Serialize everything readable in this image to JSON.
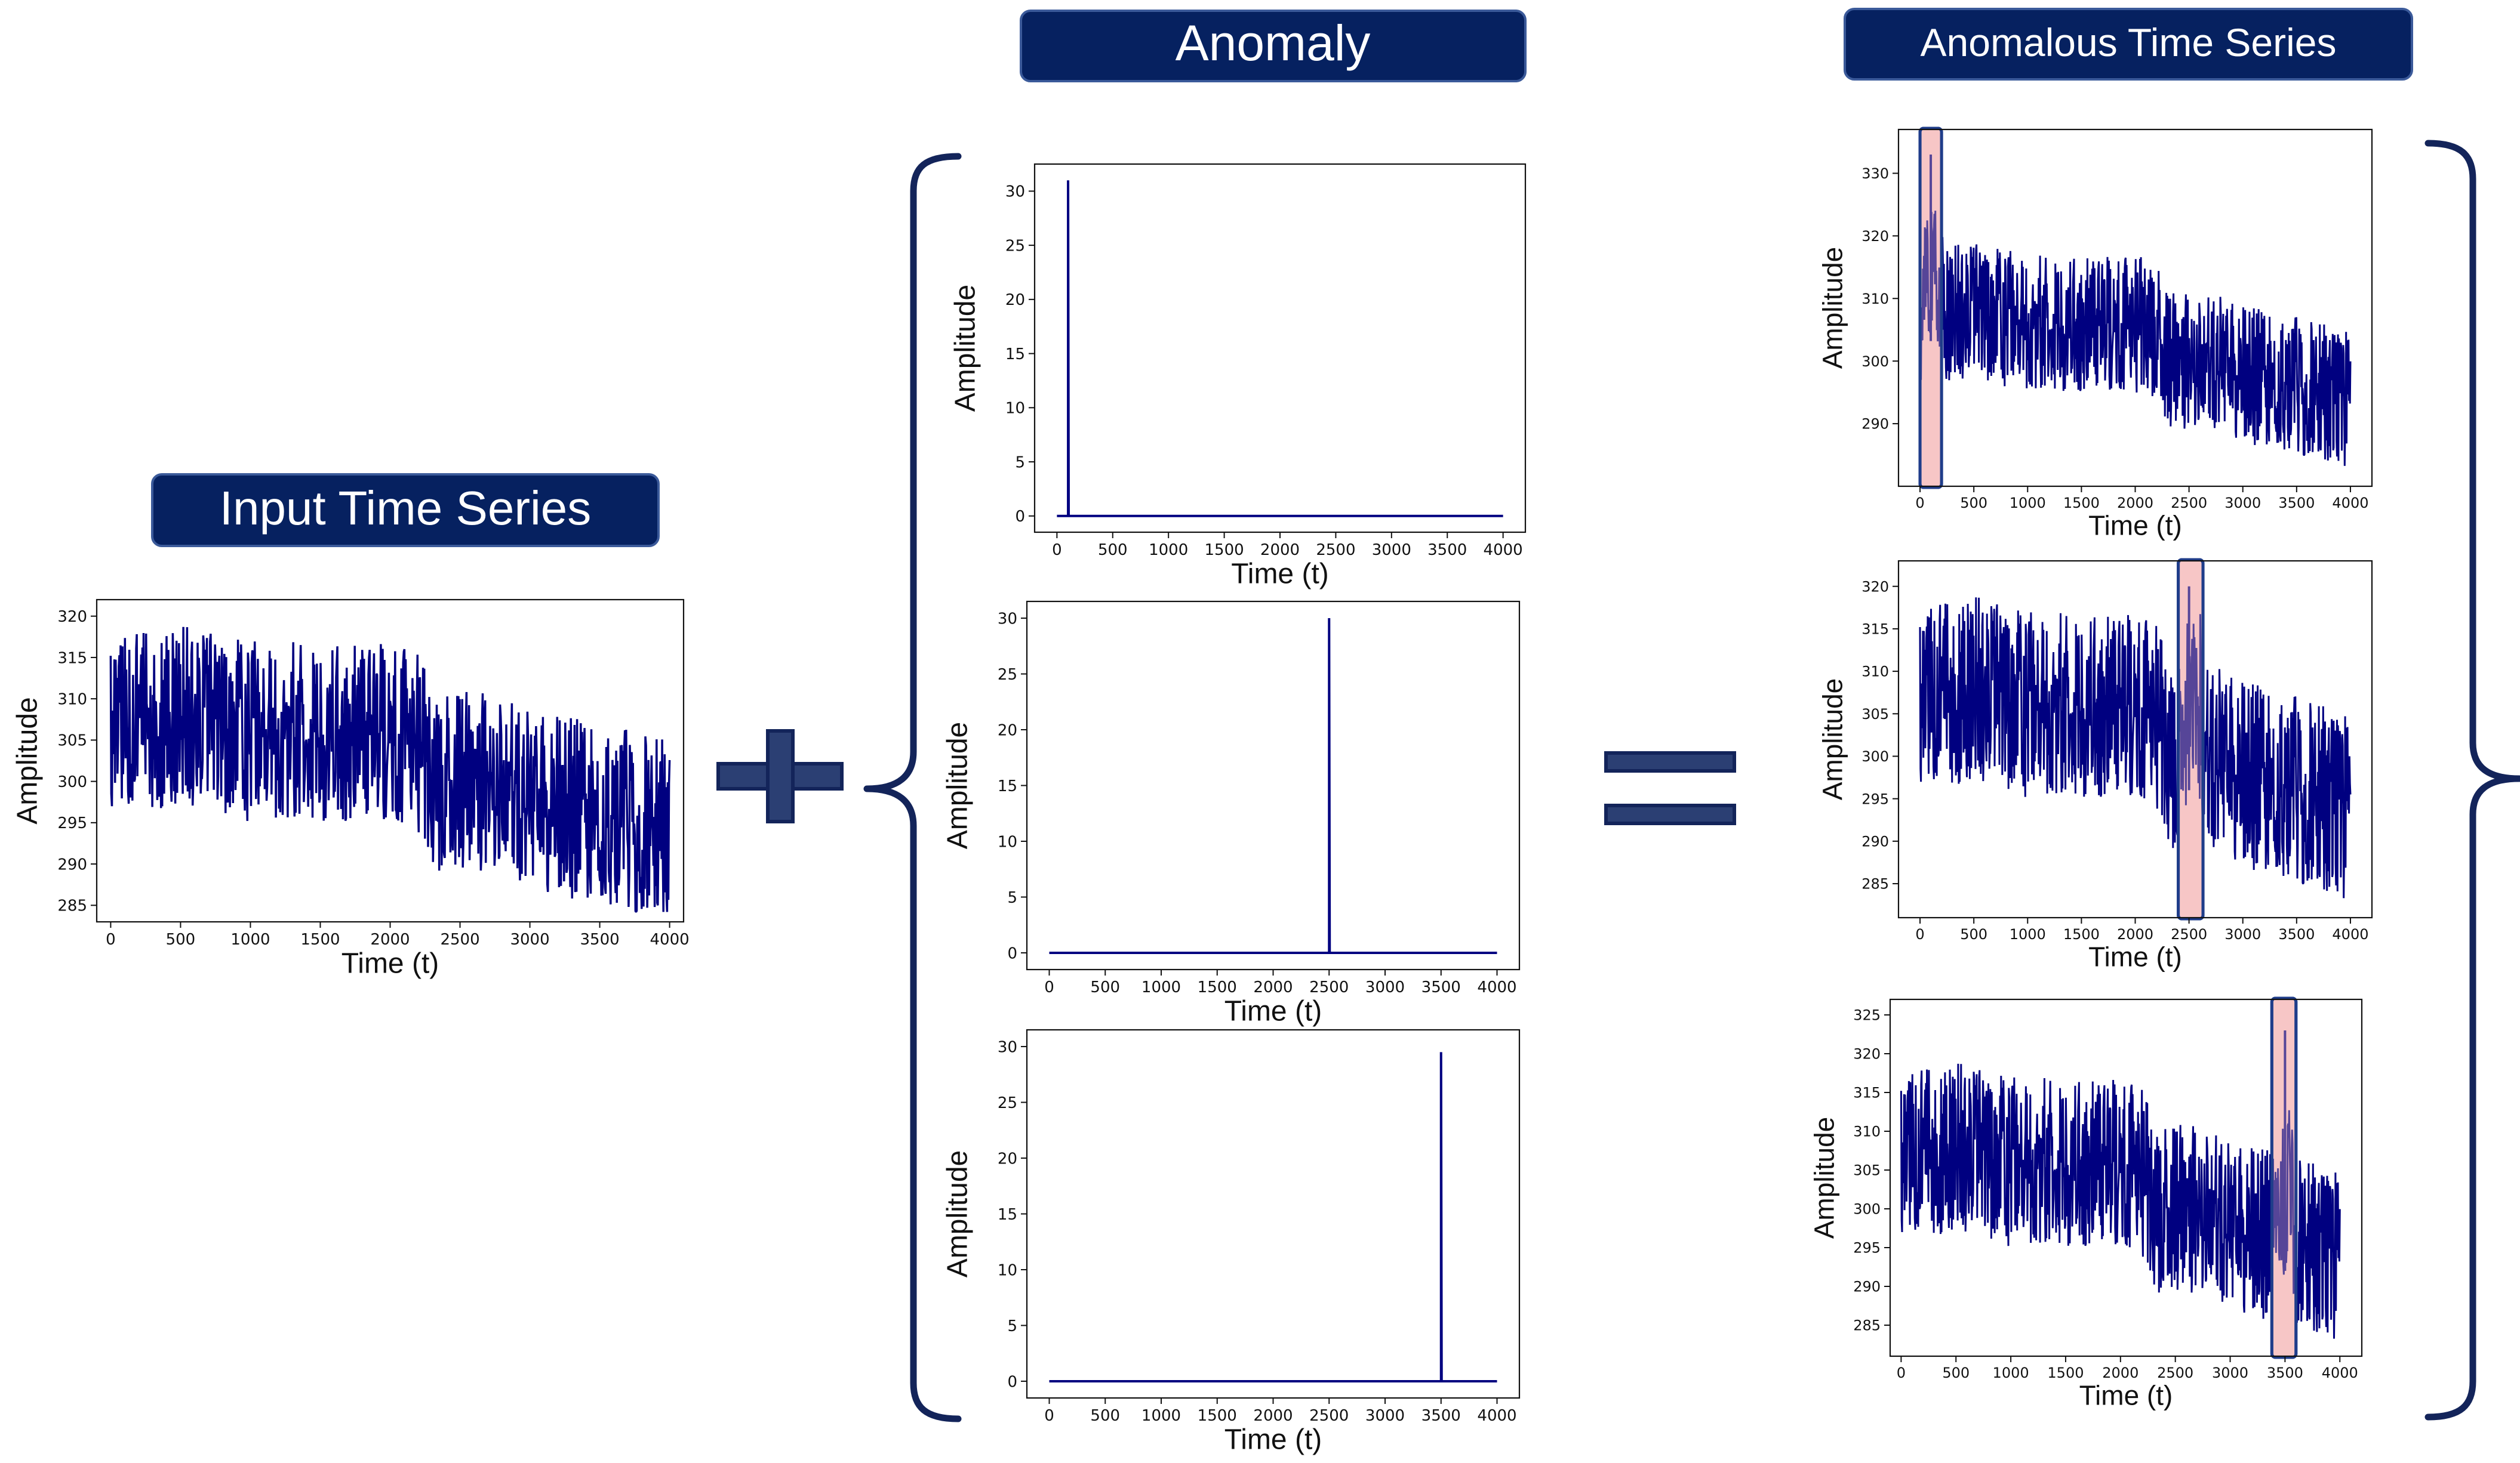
{
  "titles": {
    "input": "Input Time Series",
    "anomaly": "Anomaly",
    "anomalous": "Anomalous Time Series"
  },
  "operators": {
    "plus": "+",
    "equals": "="
  },
  "colors": {
    "badge": "#062160",
    "badge_border": "#3b5a9a",
    "series": "#000080",
    "operator": "#2b3f73",
    "operator_border": "#13245a",
    "brace": "#13245a",
    "highlight_fill": "#f7c7c7",
    "highlight_border": "#1f3d8a"
  },
  "chart_data": [
    {
      "id": "input",
      "type": "line",
      "xlabel": "Time (t)",
      "ylabel": "Amplitude",
      "xlim": [
        -100,
        4100
      ],
      "ylim": [
        283,
        322
      ],
      "xticks": [
        0,
        500,
        1000,
        1500,
        2000,
        2500,
        3000,
        3500,
        4000
      ],
      "yticks": [
        285,
        290,
        295,
        300,
        305,
        310,
        315,
        320
      ],
      "series": [
        {
          "kind": "noisy",
          "x_range": [
            0,
            4000
          ],
          "trend": [
            [
              0,
              307
            ],
            [
              500,
              308
            ],
            [
              1000,
              306
            ],
            [
              1500,
              306
            ],
            [
              2000,
              306
            ],
            [
              2200,
              305
            ],
            [
              2300,
              300
            ],
            [
              2800,
              300
            ],
            [
              3000,
              298
            ],
            [
              3500,
              296
            ],
            [
              4000,
              294
            ]
          ],
          "noise_amplitude": 11
        }
      ]
    },
    {
      "id": "anomaly-1",
      "type": "line",
      "xlabel": "Time (t)",
      "ylabel": "Amplitude",
      "xlim": [
        -200,
        4200
      ],
      "ylim": [
        -1.5,
        32.5
      ],
      "xticks": [
        0,
        500,
        1000,
        1500,
        2000,
        2500,
        3000,
        3500,
        4000
      ],
      "yticks": [
        0,
        5,
        10,
        15,
        20,
        25,
        30
      ],
      "series": [
        {
          "kind": "spike",
          "x_range": [
            0,
            4000
          ],
          "baseline": 0,
          "spike_x": 100,
          "spike_y": 31
        }
      ]
    },
    {
      "id": "anomaly-2",
      "type": "line",
      "xlabel": "Time (t)",
      "ylabel": "Amplitude",
      "xlim": [
        -200,
        4200
      ],
      "ylim": [
        -1.5,
        31.5
      ],
      "xticks": [
        0,
        500,
        1000,
        1500,
        2000,
        2500,
        3000,
        3500,
        4000
      ],
      "yticks": [
        0,
        5,
        10,
        15,
        20,
        25,
        30
      ],
      "series": [
        {
          "kind": "spike",
          "x_range": [
            0,
            4000
          ],
          "baseline": 0,
          "spike_x": 2500,
          "spike_y": 30
        }
      ]
    },
    {
      "id": "anomaly-3",
      "type": "line",
      "xlabel": "Time (t)",
      "ylabel": "Amplitude",
      "xlim": [
        -200,
        4200
      ],
      "ylim": [
        -1.5,
        31.5
      ],
      "xticks": [
        0,
        500,
        1000,
        1500,
        2000,
        2500,
        3000,
        3500,
        4000
      ],
      "yticks": [
        0,
        5,
        10,
        15,
        20,
        25,
        30
      ],
      "series": [
        {
          "kind": "spike",
          "x_range": [
            0,
            4000
          ],
          "baseline": 0,
          "spike_x": 3500,
          "spike_y": 29.5
        }
      ]
    },
    {
      "id": "anomalous-1",
      "type": "line",
      "xlabel": "Time (t)",
      "ylabel": "Amplitude",
      "xlim": [
        -200,
        4200
      ],
      "ylim": [
        280,
        337
      ],
      "xticks": [
        0,
        500,
        1000,
        1500,
        2000,
        2500,
        3000,
        3500,
        4000
      ],
      "yticks": [
        290,
        300,
        310,
        320,
        330
      ],
      "highlight_x": [
        0,
        200
      ],
      "series": [
        {
          "kind": "noisy",
          "x_range": [
            0,
            4000
          ],
          "trend": [
            [
              0,
              307
            ],
            [
              500,
              308
            ],
            [
              1000,
              306
            ],
            [
              1500,
              306
            ],
            [
              2000,
              306
            ],
            [
              2200,
              305
            ],
            [
              2300,
              300
            ],
            [
              2800,
              300
            ],
            [
              3000,
              298
            ],
            [
              3500,
              296
            ],
            [
              4000,
              294
            ]
          ],
          "noise_amplitude": 11,
          "spike_x": 100,
          "spike_y": 333,
          "bump_range": [
            30,
            220
          ]
        }
      ]
    },
    {
      "id": "anomalous-2",
      "type": "line",
      "xlabel": "Time (t)",
      "ylabel": "Amplitude",
      "xlim": [
        -200,
        4200
      ],
      "ylim": [
        281,
        323
      ],
      "xticks": [
        0,
        500,
        1000,
        1500,
        2000,
        2500,
        3000,
        3500,
        4000
      ],
      "yticks": [
        285,
        290,
        295,
        300,
        305,
        310,
        315,
        320
      ],
      "highlight_x": [
        2400,
        2630
      ],
      "series": [
        {
          "kind": "noisy",
          "x_range": [
            0,
            4000
          ],
          "trend": [
            [
              0,
              307
            ],
            [
              500,
              308
            ],
            [
              1000,
              306
            ],
            [
              1500,
              306
            ],
            [
              2000,
              306
            ],
            [
              2200,
              305
            ],
            [
              2300,
              300
            ],
            [
              2800,
              300
            ],
            [
              3000,
              298
            ],
            [
              3500,
              296
            ],
            [
              4000,
              294
            ]
          ],
          "noise_amplitude": 11,
          "spike_x": 2500,
          "spike_y": 320,
          "bump_range": [
            2420,
            2620
          ]
        }
      ]
    },
    {
      "id": "anomalous-3",
      "type": "line",
      "xlabel": "Time (t)",
      "ylabel": "Amplitude",
      "xlim": [
        -100,
        4200
      ],
      "ylim": [
        281,
        327
      ],
      "xticks": [
        0,
        500,
        1000,
        1500,
        2000,
        2500,
        3000,
        3500,
        4000
      ],
      "yticks": [
        285,
        290,
        295,
        300,
        305,
        310,
        315,
        320,
        325
      ],
      "highlight_x": [
        3380,
        3600
      ],
      "series": [
        {
          "kind": "noisy",
          "x_range": [
            0,
            4000
          ],
          "trend": [
            [
              0,
              307
            ],
            [
              500,
              308
            ],
            [
              1000,
              306
            ],
            [
              1500,
              306
            ],
            [
              2000,
              306
            ],
            [
              2200,
              305
            ],
            [
              2300,
              300
            ],
            [
              2800,
              300
            ],
            [
              3000,
              298
            ],
            [
              3500,
              296
            ],
            [
              4000,
              294
            ]
          ],
          "noise_amplitude": 11,
          "spike_x": 3500,
          "spike_y": 323,
          "bump_range": [
            3400,
            3590
          ]
        }
      ]
    }
  ]
}
